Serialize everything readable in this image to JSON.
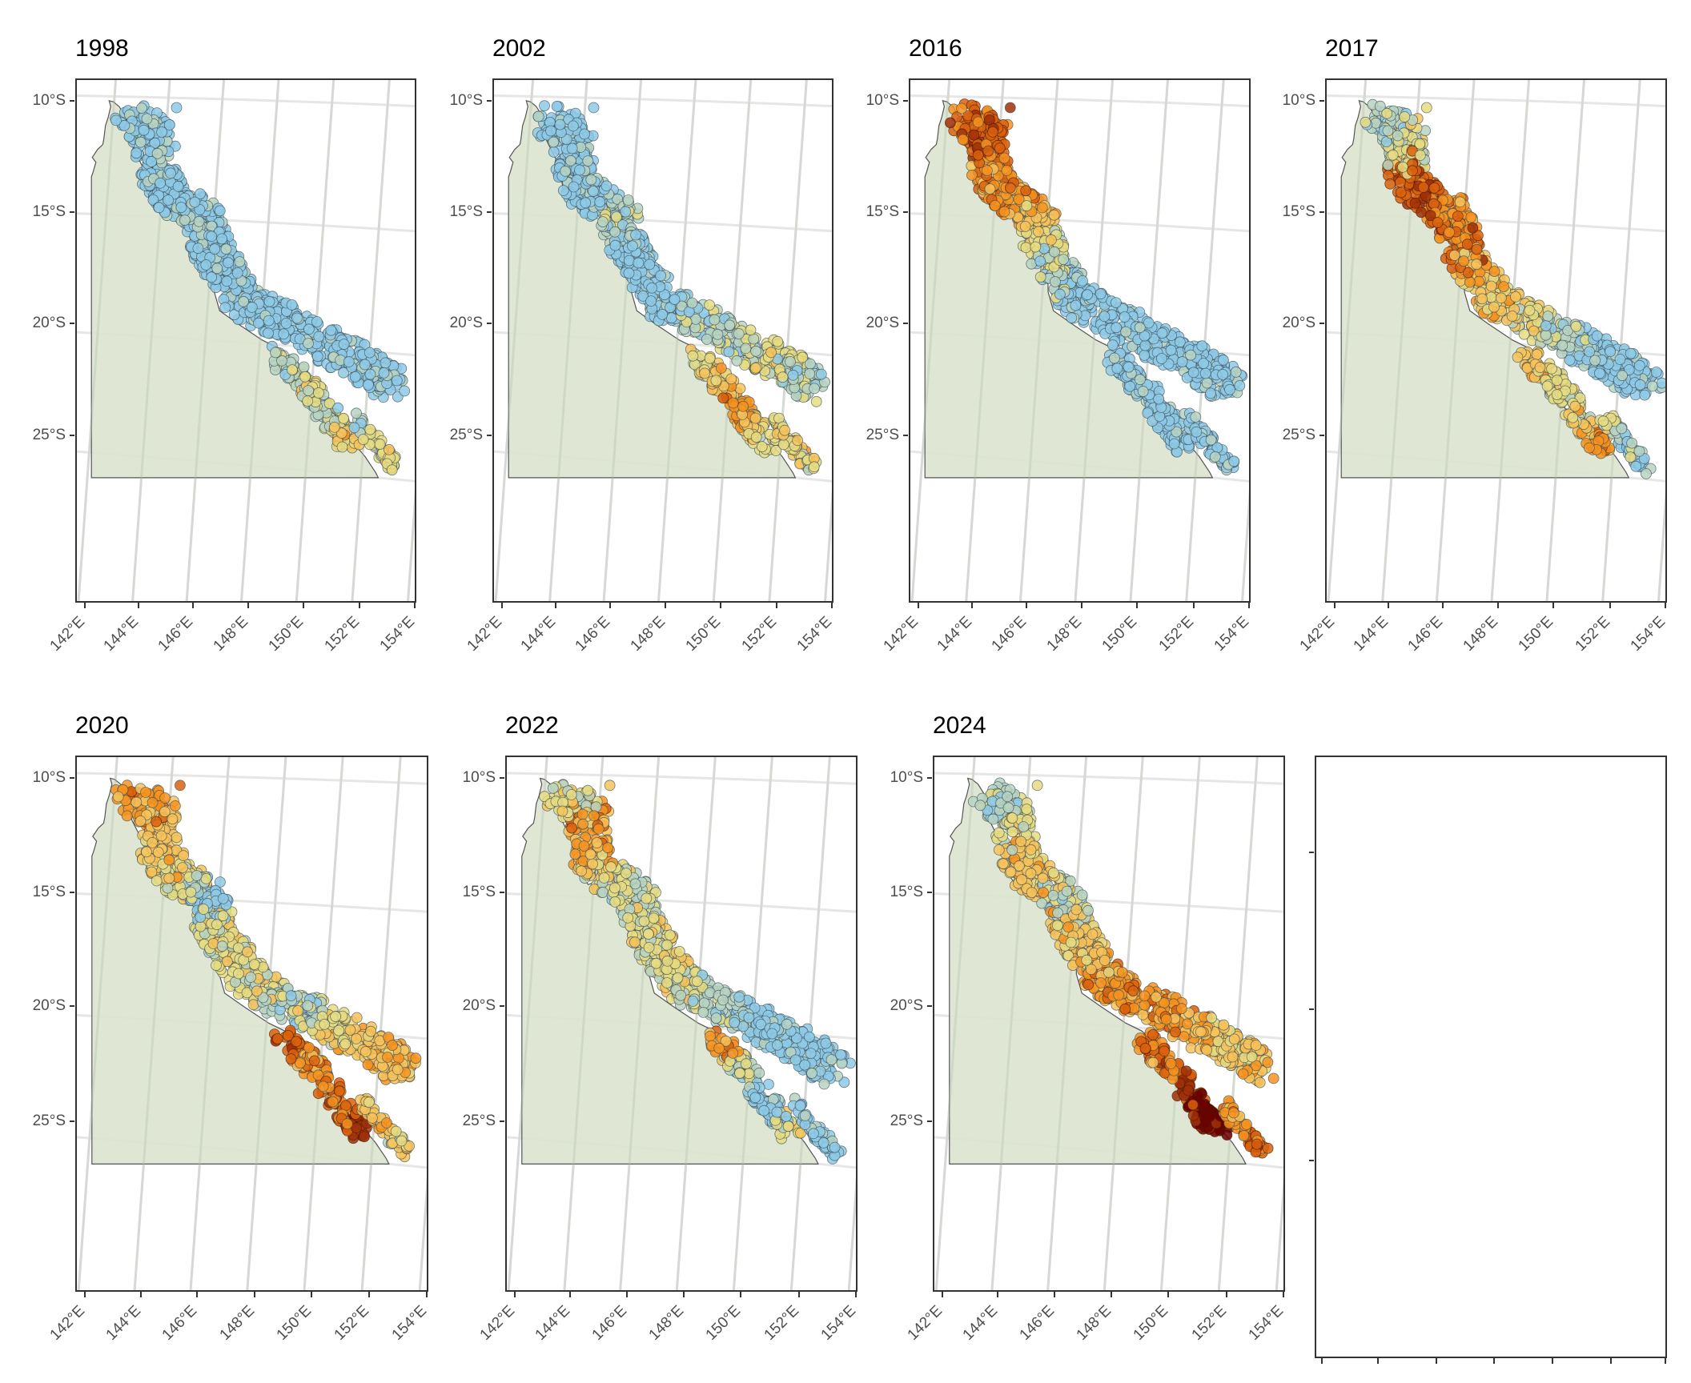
{
  "chart_data": {
    "type": "scatter",
    "subtype": "faceted map (small multiples) of reef sites coloured by heat-stress / bleaching category",
    "title": "",
    "xlabel": "",
    "ylabel": "",
    "x_ticks": [
      "142°E",
      "144°E",
      "146°E",
      "148°E",
      "150°E",
      "152°E",
      "154°E"
    ],
    "y_ticks": [
      "10°S",
      "15°S",
      "20°S",
      "25°S"
    ],
    "x_range_deg_E": [
      141.8,
      154.0
    ],
    "y_range_deg_S": [
      9.3,
      26.7
    ],
    "grid": true,
    "legend": "none",
    "color_scale": {
      "description": "diverging blue → yellow → orange → dark red (low → high)",
      "levels": [
        "#8ecae6",
        "#b9d3c2",
        "#e6dc82",
        "#f7c35a",
        "#f7931e",
        "#d9620e",
        "#a03008",
        "#6b0000"
      ]
    },
    "land_fill": "#dce4cf",
    "facets": [
      {
        "title": "1998",
        "profile": [
          0,
          0,
          0,
          0,
          0,
          0,
          0,
          0,
          0,
          0,
          0,
          0
        ],
        "south_inner": [
          1,
          2,
          2,
          1,
          2,
          3
        ],
        "south_outer": [
          1,
          1,
          2,
          2,
          2,
          2
        ],
        "north_tint": 0
      },
      {
        "title": "2002",
        "profile": [
          0,
          0,
          0,
          0,
          1,
          0,
          0,
          0,
          1,
          1,
          2,
          1
        ],
        "south_inner": [
          2,
          3,
          3,
          4,
          3,
          2
        ],
        "south_outer": [
          2,
          3,
          2,
          3,
          2,
          2
        ],
        "north_tint": 0
      },
      {
        "title": "2016",
        "profile": [
          5,
          5,
          4,
          4,
          3,
          2,
          1,
          0,
          0,
          0,
          0,
          0
        ],
        "south_inner": [
          0,
          0,
          0,
          0,
          0,
          0
        ],
        "south_outer": [
          0,
          0,
          0,
          0,
          0,
          0
        ],
        "north_tint": 5
      },
      {
        "title": "2017",
        "profile": [
          1,
          2,
          5,
          5,
          4,
          5,
          3,
          3,
          2,
          1,
          0,
          0
        ],
        "south_inner": [
          3,
          2,
          2,
          2,
          3,
          4
        ],
        "south_outer": [
          2,
          1,
          0,
          1,
          0,
          0
        ],
        "north_tint": 1
      },
      {
        "title": "2020",
        "profile": [
          4,
          3,
          3,
          2,
          0,
          2,
          2,
          2,
          1,
          2,
          3,
          3
        ],
        "south_inner": [
          5,
          4,
          4,
          5,
          5,
          6
        ],
        "south_outer": [
          3,
          3,
          3,
          2,
          2,
          3
        ],
        "north_tint": 4
      },
      {
        "title": "2022",
        "profile": [
          2,
          4,
          3,
          2,
          1,
          2,
          2,
          2,
          1,
          0,
          0,
          0
        ],
        "south_inner": [
          4,
          2,
          1,
          0,
          0,
          2
        ],
        "south_outer": [
          0,
          0,
          0,
          0,
          0,
          0
        ],
        "north_tint": 2
      },
      {
        "title": "2024",
        "profile": [
          1,
          2,
          3,
          3,
          1,
          3,
          3,
          4,
          4,
          4,
          3,
          3
        ],
        "south_inner": [
          5,
          4,
          5,
          6,
          7,
          7
        ],
        "south_outer": [
          4,
          4,
          4,
          5,
          5,
          5
        ],
        "north_tint": 1
      },
      {
        "title": "",
        "empty": true
      }
    ]
  }
}
